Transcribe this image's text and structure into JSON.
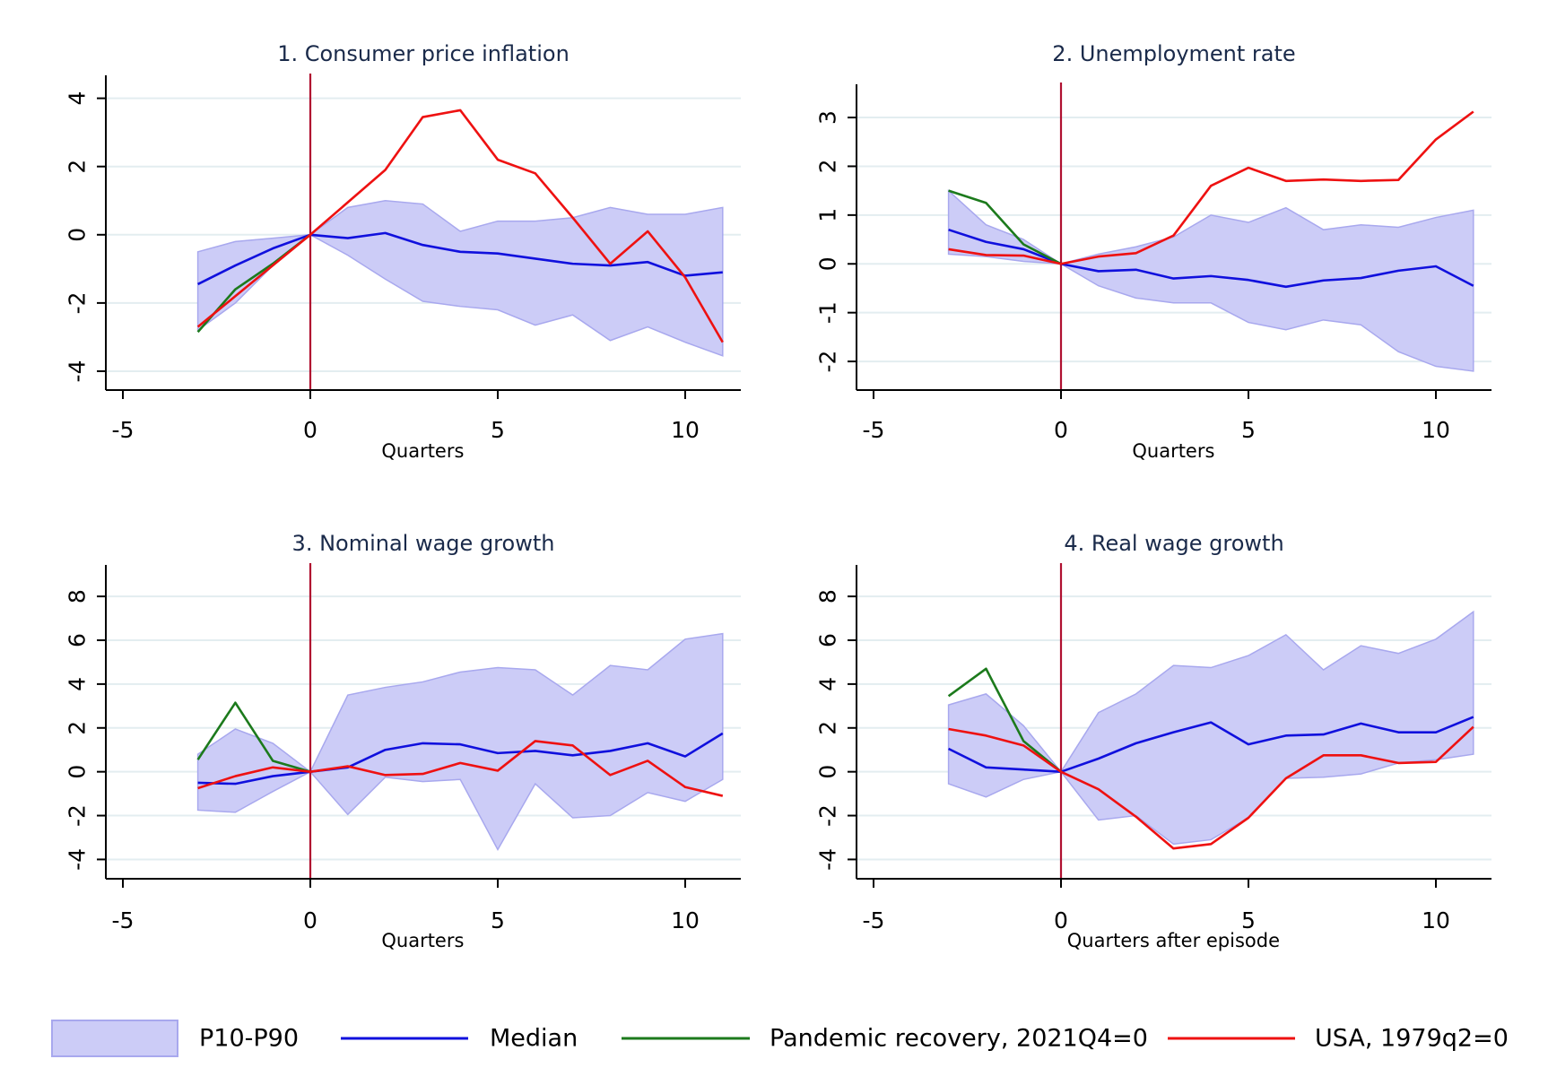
{
  "colors": {
    "band_fill": "#ccccf7",
    "band_edge": "#a8a8ee",
    "median": "#1010dd",
    "pandemic": "#1c7a1c",
    "usa": "#ee1111",
    "vline": "#b01030",
    "grid": "#e3edf0"
  },
  "legend": [
    {
      "key": "band",
      "label": "P10-P90"
    },
    {
      "key": "median",
      "label": "Median"
    },
    {
      "key": "pandemic",
      "label": "Pandemic recovery, 2021Q4=0"
    },
    {
      "key": "usa",
      "label": "USA, 1979q2=0"
    }
  ],
  "chart_data": [
    {
      "type": "line",
      "title": "1. Consumer price inflation",
      "xlabel": "Quarters",
      "xlim": [
        -5,
        11.5
      ],
      "xticks": [
        -5,
        0,
        5,
        10
      ],
      "ylim": [
        -4.5,
        4.2
      ],
      "yticks": [
        -4,
        -2,
        0,
        2,
        4
      ],
      "x": [
        -3,
        -2,
        -1,
        0,
        1,
        2,
        3,
        4,
        5,
        6,
        7,
        8,
        9,
        10,
        11
      ],
      "band": {
        "name": "P10-P90",
        "upper": [
          -0.5,
          -0.2,
          -0.1,
          0,
          0.8,
          1.0,
          0.9,
          0.1,
          0.4,
          0.4,
          0.5,
          0.8,
          0.6,
          0.6,
          0.8
        ],
        "lower": [
          -2.8,
          -2.0,
          -0.9,
          0,
          -0.6,
          -1.3,
          -1.95,
          -2.1,
          -2.2,
          -2.65,
          -2.35,
          -3.1,
          -2.7,
          -3.15,
          -3.55
        ]
      },
      "series": [
        {
          "name": "Median",
          "key": "median",
          "x": [
            -3,
            -2,
            -1,
            0,
            1,
            2,
            3,
            4,
            5,
            6,
            7,
            8,
            9,
            10,
            11
          ],
          "values": [
            -1.45,
            -0.9,
            -0.4,
            0,
            -0.1,
            0.05,
            -0.3,
            -0.5,
            -0.55,
            -0.7,
            -0.85,
            -0.9,
            -0.8,
            -1.2,
            -1.1
          ]
        },
        {
          "name": "Pandemic recovery, 2021Q4=0",
          "key": "pandemic",
          "x": [
            -3,
            -2,
            -1,
            0
          ],
          "values": [
            -2.85,
            -1.6,
            -0.85,
            0
          ]
        },
        {
          "name": "USA, 1979q2=0",
          "key": "usa",
          "x": [
            -3,
            -2,
            -1,
            0,
            1,
            2,
            3,
            4,
            5,
            6,
            7,
            8,
            9,
            10,
            11
          ],
          "values": [
            -2.7,
            -1.8,
            -0.9,
            0,
            0.95,
            1.9,
            3.45,
            3.65,
            2.2,
            1.8,
            0.5,
            -0.85,
            0.1,
            -1.25,
            -3.15
          ]
        }
      ]
    },
    {
      "type": "line",
      "title": "2. Unemployment rate",
      "xlabel": "Quarters",
      "xlim": [
        -5,
        11.5
      ],
      "xticks": [
        -5,
        0,
        5,
        10
      ],
      "ylim": [
        -2.55,
        3.35
      ],
      "yticks": [
        -2,
        -1,
        0,
        1,
        2,
        3
      ],
      "x": [
        -3,
        -2,
        -1,
        0,
        1,
        2,
        3,
        4,
        5,
        6,
        7,
        8,
        9,
        10,
        11
      ],
      "band": {
        "name": "P10-P90",
        "upper": [
          1.5,
          0.8,
          0.5,
          0,
          0.2,
          0.35,
          0.55,
          1.0,
          0.85,
          1.15,
          0.7,
          0.8,
          0.75,
          0.95,
          1.1
        ],
        "lower": [
          0.2,
          0.15,
          0.05,
          0,
          -0.45,
          -0.7,
          -0.8,
          -0.8,
          -1.2,
          -1.35,
          -1.15,
          -1.25,
          -1.8,
          -2.1,
          -2.2
        ]
      },
      "series": [
        {
          "name": "Median",
          "key": "median",
          "x": [
            -3,
            -2,
            -1,
            0,
            1,
            2,
            3,
            4,
            5,
            6,
            7,
            8,
            9,
            10,
            11
          ],
          "values": [
            0.7,
            0.45,
            0.3,
            0,
            -0.15,
            -0.12,
            -0.3,
            -0.25,
            -0.33,
            -0.47,
            -0.34,
            -0.29,
            -0.14,
            -0.05,
            -0.45
          ]
        },
        {
          "name": "Pandemic recovery, 2021Q4=0",
          "key": "pandemic",
          "x": [
            -3,
            -2,
            -1,
            0
          ],
          "values": [
            1.5,
            1.25,
            0.4,
            0
          ]
        },
        {
          "name": "USA, 1979q2=0",
          "key": "usa",
          "x": [
            -3,
            -2,
            -1,
            0,
            1,
            2,
            3,
            4,
            5,
            6,
            7,
            8,
            9,
            10,
            11
          ],
          "values": [
            0.3,
            0.18,
            0.17,
            0,
            0.15,
            0.22,
            0.58,
            1.6,
            1.97,
            1.7,
            1.73,
            1.7,
            1.72,
            2.55,
            3.12
          ]
        }
      ]
    },
    {
      "type": "line",
      "title": "3. Nominal wage growth",
      "xlabel": "Quarters",
      "xlim": [
        -5,
        11.5
      ],
      "xticks": [
        -5,
        0,
        5,
        10
      ],
      "ylim": [
        -4.8,
        8.7
      ],
      "yticks": [
        -4,
        -2,
        0,
        2,
        4,
        6,
        8
      ],
      "x": [
        -3,
        -2,
        -1,
        0,
        1,
        2,
        3,
        4,
        5,
        6,
        7,
        8,
        9,
        10,
        11
      ],
      "band": {
        "name": "P10-P90",
        "upper": [
          0.8,
          1.95,
          1.3,
          0,
          3.5,
          3.85,
          4.1,
          4.55,
          4.75,
          4.65,
          3.5,
          4.85,
          4.65,
          6.05,
          6.3
        ],
        "lower": [
          -1.75,
          -1.85,
          -0.9,
          0,
          -1.95,
          -0.25,
          -0.45,
          -0.35,
          -3.55,
          -0.55,
          -2.1,
          -2.0,
          -0.95,
          -1.35,
          -0.35
        ]
      },
      "series": [
        {
          "name": "Median",
          "key": "median",
          "x": [
            -3,
            -2,
            -1,
            0,
            1,
            2,
            3,
            4,
            5,
            6,
            7,
            8,
            9,
            10,
            11
          ],
          "values": [
            -0.5,
            -0.55,
            -0.2,
            0,
            0.2,
            1.0,
            1.3,
            1.25,
            0.85,
            0.95,
            0.75,
            0.95,
            1.3,
            0.7,
            1.75
          ]
        },
        {
          "name": "Pandemic recovery, 2021Q4=0",
          "key": "pandemic",
          "x": [
            -3,
            -2,
            -1,
            0
          ],
          "values": [
            0.55,
            3.15,
            0.5,
            0
          ]
        },
        {
          "name": "USA, 1979q2=0",
          "key": "usa",
          "x": [
            -3,
            -2,
            -1,
            0,
            1,
            2,
            3,
            4,
            5,
            6,
            7,
            8,
            9,
            10,
            11
          ],
          "values": [
            -0.75,
            -0.2,
            0.2,
            0,
            0.25,
            -0.15,
            -0.1,
            0.4,
            0.05,
            1.4,
            1.2,
            -0.15,
            0.5,
            -0.7,
            -1.1
          ]
        }
      ]
    },
    {
      "type": "line",
      "title": "4. Real wage growth",
      "xlabel": "Quarters after episode",
      "xlim": [
        -5,
        11.5
      ],
      "xticks": [
        -5,
        0,
        5,
        10
      ],
      "ylim": [
        -4.8,
        8.7
      ],
      "yticks": [
        -4,
        -2,
        0,
        2,
        4,
        6,
        8
      ],
      "x": [
        -3,
        -2,
        -1,
        0,
        1,
        2,
        3,
        4,
        5,
        6,
        7,
        8,
        9,
        10,
        11
      ],
      "band": {
        "name": "P10-P90",
        "upper": [
          3.05,
          3.55,
          2.1,
          0,
          2.7,
          3.55,
          4.85,
          4.75,
          5.3,
          6.25,
          4.65,
          5.75,
          5.4,
          6.05,
          7.3
        ],
        "lower": [
          -0.55,
          -1.15,
          -0.35,
          0,
          -2.2,
          -2.0,
          -3.3,
          -3.1,
          -2.1,
          -0.3,
          -0.25,
          -0.1,
          0.4,
          0.55,
          0.8
        ]
      },
      "series": [
        {
          "name": "Median",
          "key": "median",
          "x": [
            -3,
            -2,
            -1,
            0,
            1,
            2,
            3,
            4,
            5,
            6,
            7,
            8,
            9,
            10,
            11
          ],
          "values": [
            1.05,
            0.2,
            0.1,
            0,
            0.6,
            1.3,
            1.8,
            2.25,
            1.25,
            1.65,
            1.7,
            2.2,
            1.8,
            1.8,
            2.5
          ]
        },
        {
          "name": "Pandemic recovery, 2021Q4=0",
          "key": "pandemic",
          "x": [
            -3,
            -2,
            -1,
            0
          ],
          "values": [
            3.45,
            4.7,
            1.4,
            0
          ]
        },
        {
          "name": "USA, 1979q2=0",
          "key": "usa",
          "x": [
            -3,
            -2,
            -1,
            0,
            1,
            2,
            3,
            4,
            5,
            6,
            7,
            8,
            9,
            10,
            11
          ],
          "values": [
            1.95,
            1.65,
            1.2,
            0,
            -0.8,
            -2.05,
            -3.5,
            -3.3,
            -2.1,
            -0.3,
            0.75,
            0.75,
            0.4,
            0.45,
            2.05
          ]
        }
      ]
    }
  ]
}
